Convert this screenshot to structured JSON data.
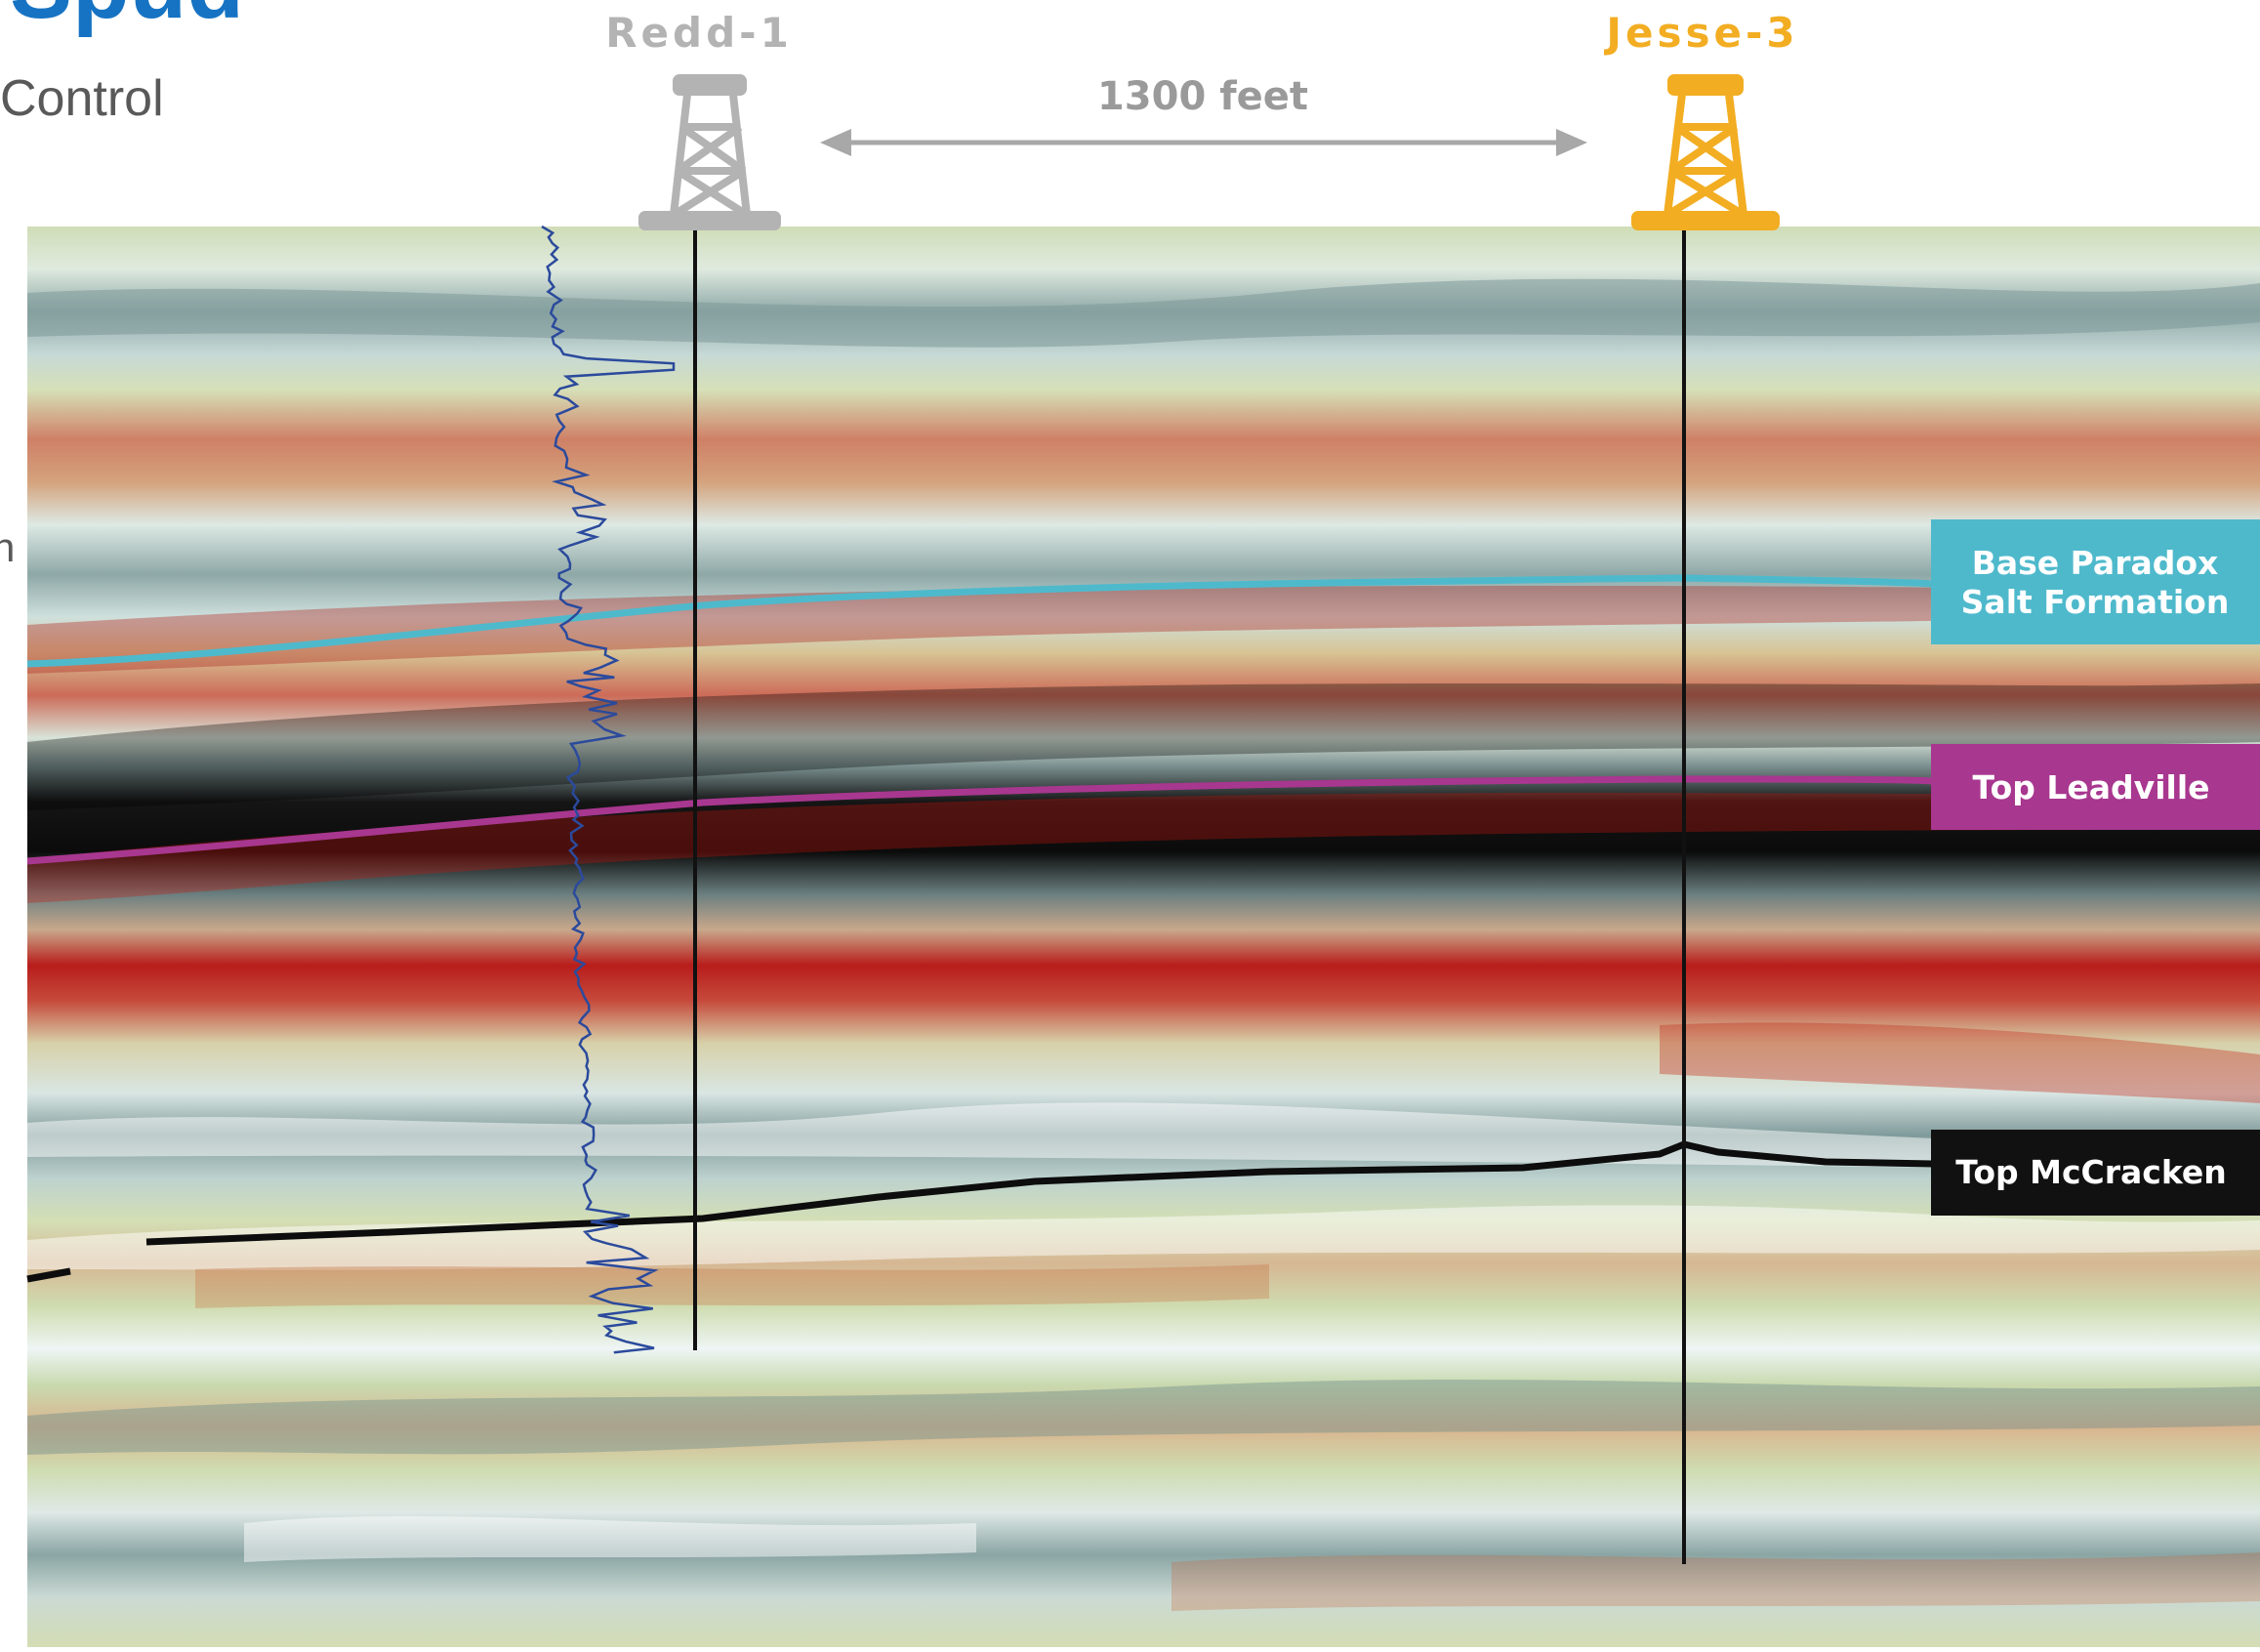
{
  "header": {
    "title_fragment": "Spud",
    "subtitle_fragment": "Control",
    "edge_fragment": "n"
  },
  "wells": [
    {
      "name": "Redd-1",
      "color": "#b3b3b3"
    },
    {
      "name": "Jesse-3",
      "color": "#f2ad22"
    }
  ],
  "distance_label": "1300 feet",
  "horizons": [
    {
      "label_lines": [
        "Base Paradox",
        "Salt Formation"
      ],
      "color": "#4fb9cc"
    },
    {
      "label_lines": [
        "Top Leadville"
      ],
      "color": "#a8378f"
    },
    {
      "label_lines": [
        "Top McCracken"
      ],
      "color": "#111111"
    }
  ],
  "colors": {
    "title_blue": "#1673c3",
    "subtitle_gray": "#595959",
    "seismic_green": "#c7d6ab",
    "seismic_red": "#b11c1a",
    "seismic_black": "#0d0d0d",
    "seismic_teal": "#6f8e8f",
    "gamma_log": "#2b4a9c"
  }
}
